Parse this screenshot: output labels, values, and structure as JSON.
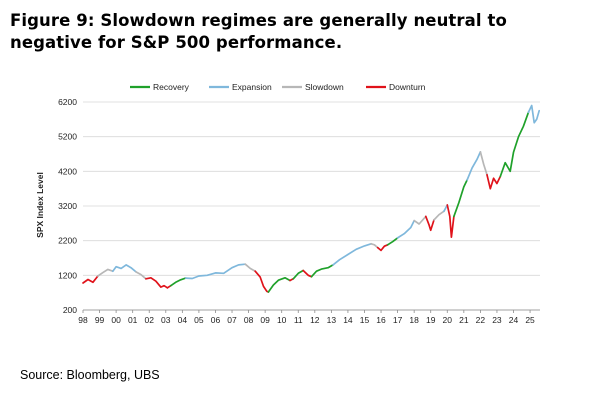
{
  "figure": {
    "title_line1": "Figure 9: Slowdown regimes are generally neutral to",
    "title_line2": "negative for S&P 500 performance.",
    "source": "Source: Bloomberg, UBS"
  },
  "chart_data": {
    "type": "line",
    "ylabel": "SPX Index Level",
    "xlabel": "",
    "ylim": [
      200,
      6200
    ],
    "xlim": [
      1998,
      2025.6
    ],
    "yticks": [
      200,
      1200,
      2200,
      3200,
      4200,
      5200,
      6200
    ],
    "ytick_labels": [
      "200",
      "1200",
      "2200",
      "3200",
      "4200",
      "5200",
      "6200"
    ],
    "xticks": [
      1998,
      1999,
      2000,
      2001,
      2002,
      2003,
      2004,
      2005,
      2006,
      2007,
      2008,
      2009,
      2010,
      2011,
      2012,
      2013,
      2014,
      2015,
      2016,
      2017,
      2018,
      2019,
      2020,
      2021,
      2022,
      2023,
      2024,
      2025
    ],
    "xtick_labels": [
      "98",
      "99",
      "00",
      "01",
      "02",
      "03",
      "04",
      "05",
      "06",
      "07",
      "08",
      "09",
      "10",
      "11",
      "12",
      "13",
      "14",
      "15",
      "16",
      "17",
      "18",
      "19",
      "20",
      "21",
      "22",
      "23",
      "24",
      "25"
    ],
    "grid": "horizontal",
    "legend_position": "top-center",
    "legend": [
      {
        "key": "recovery",
        "label": "Recovery"
      },
      {
        "key": "expansion",
        "label": "Expansion"
      },
      {
        "key": "slowdown",
        "label": "Slowdown"
      },
      {
        "key": "downturn",
        "label": "Downturn"
      }
    ],
    "colors": {
      "recovery": "#1fa12a",
      "expansion": "#7fb8dc",
      "slowdown": "#b7b7b7",
      "downturn": "#e0121a"
    },
    "series": [
      {
        "regime": "downturn",
        "points": [
          [
            1998.0,
            980
          ],
          [
            1998.3,
            1080
          ],
          [
            1998.6,
            1000
          ],
          [
            1998.9,
            1180
          ]
        ]
      },
      {
        "regime": "slowdown",
        "points": [
          [
            1998.9,
            1180
          ],
          [
            1999.2,
            1280
          ],
          [
            1999.5,
            1370
          ],
          [
            1999.8,
            1320
          ]
        ]
      },
      {
        "regime": "expansion",
        "points": [
          [
            1999.8,
            1320
          ],
          [
            2000.0,
            1450
          ],
          [
            2000.3,
            1400
          ],
          [
            2000.6,
            1500
          ],
          [
            2000.9,
            1420
          ],
          [
            2001.2,
            1300
          ]
        ]
      },
      {
        "regime": "slowdown",
        "points": [
          [
            2001.2,
            1300
          ],
          [
            2001.5,
            1220
          ],
          [
            2001.8,
            1100
          ]
        ]
      },
      {
        "regime": "downturn",
        "points": [
          [
            2001.8,
            1100
          ],
          [
            2002.1,
            1130
          ],
          [
            2002.4,
            1030
          ],
          [
            2002.7,
            860
          ],
          [
            2002.9,
            900
          ],
          [
            2003.1,
            840
          ]
        ]
      },
      {
        "regime": "downturn",
        "points": [
          [
            2003.1,
            840
          ],
          [
            2003.3,
            900
          ]
        ]
      },
      {
        "regime": "recovery",
        "points": [
          [
            2003.3,
            900
          ],
          [
            2003.6,
            1000
          ],
          [
            2003.9,
            1070
          ],
          [
            2004.2,
            1120
          ]
        ]
      },
      {
        "regime": "expansion",
        "points": [
          [
            2004.2,
            1120
          ],
          [
            2004.6,
            1110
          ],
          [
            2005.0,
            1180
          ],
          [
            2005.5,
            1200
          ],
          [
            2006.0,
            1270
          ],
          [
            2006.5,
            1260
          ],
          [
            2007.0,
            1420
          ],
          [
            2007.4,
            1500
          ],
          [
            2007.8,
            1520
          ]
        ]
      },
      {
        "regime": "slowdown",
        "points": [
          [
            2007.8,
            1520
          ],
          [
            2008.1,
            1400
          ],
          [
            2008.4,
            1320
          ]
        ]
      },
      {
        "regime": "downturn",
        "points": [
          [
            2008.4,
            1320
          ],
          [
            2008.7,
            1150
          ],
          [
            2008.9,
            880
          ],
          [
            2009.1,
            740
          ],
          [
            2009.2,
            720
          ]
        ]
      },
      {
        "regime": "recovery",
        "points": [
          [
            2009.2,
            720
          ],
          [
            2009.5,
            920
          ],
          [
            2009.8,
            1060
          ],
          [
            2010.2,
            1130
          ],
          [
            2010.5,
            1050
          ]
        ]
      },
      {
        "regime": "downturn",
        "points": [
          [
            2010.5,
            1050
          ],
          [
            2010.7,
            1100
          ]
        ]
      },
      {
        "regime": "recovery",
        "points": [
          [
            2010.7,
            1100
          ],
          [
            2011.0,
            1260
          ],
          [
            2011.3,
            1340
          ]
        ]
      },
      {
        "regime": "downturn",
        "points": [
          [
            2011.3,
            1340
          ],
          [
            2011.6,
            1200
          ],
          [
            2011.8,
            1160
          ]
        ]
      },
      {
        "regime": "recovery",
        "points": [
          [
            2011.8,
            1160
          ],
          [
            2012.1,
            1320
          ],
          [
            2012.4,
            1380
          ],
          [
            2012.8,
            1420
          ],
          [
            2013.1,
            1500
          ]
        ]
      },
      {
        "regime": "expansion",
        "points": [
          [
            2013.1,
            1500
          ],
          [
            2013.5,
            1650
          ],
          [
            2014.0,
            1800
          ],
          [
            2014.5,
            1950
          ],
          [
            2015.0,
            2050
          ],
          [
            2015.4,
            2110
          ]
        ]
      },
      {
        "regime": "slowdown",
        "points": [
          [
            2015.4,
            2110
          ],
          [
            2015.6,
            2080
          ],
          [
            2015.8,
            2000
          ]
        ]
      },
      {
        "regime": "downturn",
        "points": [
          [
            2015.8,
            2000
          ],
          [
            2016.0,
            1920
          ],
          [
            2016.2,
            2040
          ],
          [
            2016.4,
            2080
          ]
        ]
      },
      {
        "regime": "recovery",
        "points": [
          [
            2016.4,
            2080
          ],
          [
            2016.7,
            2170
          ],
          [
            2017.0,
            2280
          ]
        ]
      },
      {
        "regime": "expansion",
        "points": [
          [
            2017.0,
            2280
          ],
          [
            2017.4,
            2400
          ],
          [
            2017.8,
            2580
          ],
          [
            2018.0,
            2780
          ]
        ]
      },
      {
        "regime": "slowdown",
        "points": [
          [
            2018.0,
            2780
          ],
          [
            2018.3,
            2680
          ],
          [
            2018.7,
            2900
          ]
        ]
      },
      {
        "regime": "downturn",
        "points": [
          [
            2018.7,
            2900
          ],
          [
            2018.9,
            2650
          ],
          [
            2019.0,
            2500
          ],
          [
            2019.2,
            2800
          ]
        ]
      },
      {
        "regime": "slowdown",
        "points": [
          [
            2019.2,
            2800
          ],
          [
            2019.5,
            2950
          ],
          [
            2019.8,
            3050
          ]
        ]
      },
      {
        "regime": "expansion",
        "points": [
          [
            2019.8,
            3050
          ],
          [
            2020.0,
            3230
          ]
        ]
      },
      {
        "regime": "downturn",
        "points": [
          [
            2020.0,
            3230
          ],
          [
            2020.15,
            2900
          ],
          [
            2020.25,
            2300
          ],
          [
            2020.4,
            2900
          ]
        ]
      },
      {
        "regime": "recovery",
        "points": [
          [
            2020.4,
            2900
          ],
          [
            2020.7,
            3300
          ],
          [
            2021.0,
            3750
          ],
          [
            2021.2,
            3950
          ]
        ]
      },
      {
        "regime": "expansion",
        "points": [
          [
            2021.2,
            3950
          ],
          [
            2021.5,
            4300
          ],
          [
            2021.8,
            4550
          ],
          [
            2022.0,
            4760
          ]
        ]
      },
      {
        "regime": "slowdown",
        "points": [
          [
            2022.0,
            4760
          ],
          [
            2022.2,
            4400
          ],
          [
            2022.4,
            4100
          ]
        ]
      },
      {
        "regime": "downturn",
        "points": [
          [
            2022.4,
            4100
          ],
          [
            2022.6,
            3700
          ],
          [
            2022.8,
            4000
          ],
          [
            2023.0,
            3850
          ],
          [
            2023.2,
            4050
          ]
        ]
      },
      {
        "regime": "recovery",
        "points": [
          [
            2023.2,
            4050
          ],
          [
            2023.5,
            4450
          ],
          [
            2023.8,
            4200
          ],
          [
            2024.0,
            4750
          ],
          [
            2024.3,
            5200
          ],
          [
            2024.6,
            5500
          ],
          [
            2024.9,
            5900
          ]
        ]
      },
      {
        "regime": "expansion",
        "points": [
          [
            2024.9,
            5900
          ],
          [
            2025.1,
            6100
          ],
          [
            2025.25,
            5600
          ],
          [
            2025.4,
            5700
          ],
          [
            2025.55,
            5950
          ]
        ]
      }
    ]
  }
}
